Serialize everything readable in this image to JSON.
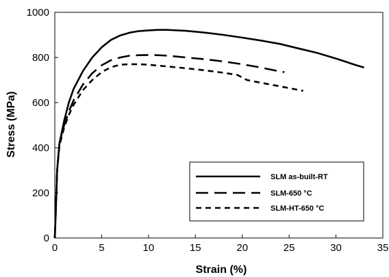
{
  "chart_data": {
    "type": "line",
    "title": "",
    "xlabel": "Strain (%)",
    "ylabel": "Stress (MPa)",
    "xlim": [
      0,
      35
    ],
    "ylim": [
      0,
      1000
    ],
    "xticks": [
      "0",
      "5",
      "10",
      "15",
      "20",
      "25",
      "30",
      "35"
    ],
    "yticks": [
      "0",
      "200",
      "400",
      "600",
      "800",
      "1000"
    ],
    "grid": false,
    "legend_position": "lower-right",
    "series": [
      {
        "name": "SLM as-built-RT",
        "style": "solid",
        "color": "#000000",
        "points": [
          [
            0,
            0
          ],
          [
            0.1,
            110
          ],
          [
            0.25,
            300
          ],
          [
            0.5,
            420
          ],
          [
            1,
            520
          ],
          [
            1.5,
            600
          ],
          [
            2,
            660
          ],
          [
            3,
            740
          ],
          [
            4,
            800
          ],
          [
            5,
            845
          ],
          [
            6,
            878
          ],
          [
            7,
            898
          ],
          [
            8,
            910
          ],
          [
            9,
            917
          ],
          [
            10,
            920
          ],
          [
            11,
            922
          ],
          [
            12,
            922
          ],
          [
            14,
            918
          ],
          [
            16,
            910
          ],
          [
            18,
            900
          ],
          [
            20,
            888
          ],
          [
            22,
            875
          ],
          [
            24,
            860
          ],
          [
            26,
            840
          ],
          [
            28,
            820
          ],
          [
            30,
            795
          ],
          [
            32,
            768
          ],
          [
            33,
            755
          ]
        ]
      },
      {
        "name": "SLM-650 °C",
        "style": "dashed",
        "color": "#000000",
        "points": [
          [
            0,
            0
          ],
          [
            0.1,
            110
          ],
          [
            0.25,
            300
          ],
          [
            0.5,
            420
          ],
          [
            1,
            500
          ],
          [
            1.5,
            560
          ],
          [
            2,
            610
          ],
          [
            3,
            680
          ],
          [
            4,
            730
          ],
          [
            5,
            765
          ],
          [
            6,
            788
          ],
          [
            7,
            800
          ],
          [
            8,
            808
          ],
          [
            9,
            810
          ],
          [
            10,
            811
          ],
          [
            11,
            810
          ],
          [
            12,
            808
          ],
          [
            14,
            800
          ],
          [
            16,
            792
          ],
          [
            18,
            782
          ],
          [
            20,
            770
          ],
          [
            22,
            755
          ],
          [
            24,
            738
          ],
          [
            24.5,
            735
          ]
        ]
      },
      {
        "name": "SLM-HT-650 °C",
        "style": "short-dashed",
        "color": "#000000",
        "points": [
          [
            0,
            0
          ],
          [
            0.1,
            110
          ],
          [
            0.25,
            300
          ],
          [
            0.5,
            410
          ],
          [
            1,
            490
          ],
          [
            1.5,
            545
          ],
          [
            2,
            590
          ],
          [
            3,
            655
          ],
          [
            4,
            700
          ],
          [
            5,
            735
          ],
          [
            6,
            757
          ],
          [
            7,
            768
          ],
          [
            8,
            770
          ],
          [
            9,
            770
          ],
          [
            10,
            768
          ],
          [
            12,
            760
          ],
          [
            14,
            752
          ],
          [
            16,
            743
          ],
          [
            18,
            732
          ],
          [
            19.5,
            722
          ],
          [
            20.5,
            700
          ],
          [
            22,
            688
          ],
          [
            24,
            672
          ],
          [
            26.5,
            652
          ]
        ]
      }
    ]
  }
}
